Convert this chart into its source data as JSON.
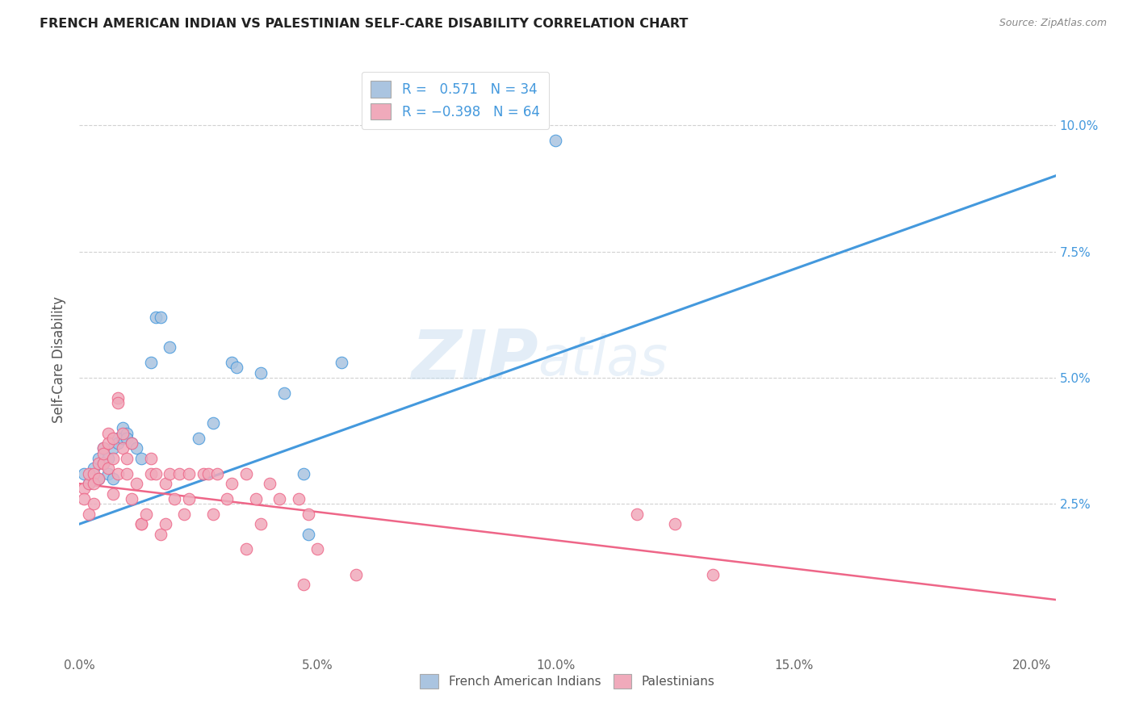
{
  "title": "FRENCH AMERICAN INDIAN VS PALESTINIAN SELF-CARE DISABILITY CORRELATION CHART",
  "source": "Source: ZipAtlas.com",
  "ylabel": "Self-Care Disability",
  "xlim": [
    0.0,
    0.205
  ],
  "ylim": [
    -0.005,
    0.112
  ],
  "watermark": "ZIPatlas",
  "legend_entries": [
    {
      "label": "French American Indians",
      "R": 0.571,
      "N": 34,
      "color": "#aac4e0"
    },
    {
      "label": "Palestinians",
      "R": -0.398,
      "N": 64,
      "color": "#f0aabb"
    }
  ],
  "blue_scatter": [
    [
      0.001,
      0.031
    ],
    [
      0.002,
      0.029
    ],
    [
      0.003,
      0.032
    ],
    [
      0.004,
      0.03
    ],
    [
      0.004,
      0.034
    ],
    [
      0.005,
      0.033
    ],
    [
      0.005,
      0.036
    ],
    [
      0.006,
      0.031
    ],
    [
      0.006,
      0.034
    ],
    [
      0.007,
      0.03
    ],
    [
      0.007,
      0.036
    ],
    [
      0.008,
      0.038
    ],
    [
      0.008,
      0.037
    ],
    [
      0.009,
      0.04
    ],
    [
      0.009,
      0.038
    ],
    [
      0.01,
      0.039
    ],
    [
      0.01,
      0.038
    ],
    [
      0.011,
      0.037
    ],
    [
      0.012,
      0.036
    ],
    [
      0.013,
      0.034
    ],
    [
      0.015,
      0.053
    ],
    [
      0.016,
      0.062
    ],
    [
      0.017,
      0.062
    ],
    [
      0.019,
      0.056
    ],
    [
      0.025,
      0.038
    ],
    [
      0.028,
      0.041
    ],
    [
      0.032,
      0.053
    ],
    [
      0.033,
      0.052
    ],
    [
      0.038,
      0.051
    ],
    [
      0.043,
      0.047
    ],
    [
      0.047,
      0.031
    ],
    [
      0.048,
      0.019
    ],
    [
      0.055,
      0.053
    ],
    [
      0.1,
      0.097
    ]
  ],
  "pink_scatter": [
    [
      0.001,
      0.028
    ],
    [
      0.001,
      0.026
    ],
    [
      0.002,
      0.029
    ],
    [
      0.002,
      0.023
    ],
    [
      0.002,
      0.031
    ],
    [
      0.003,
      0.025
    ],
    [
      0.003,
      0.031
    ],
    [
      0.003,
      0.029
    ],
    [
      0.004,
      0.033
    ],
    [
      0.004,
      0.03
    ],
    [
      0.005,
      0.036
    ],
    [
      0.005,
      0.033
    ],
    [
      0.005,
      0.035
    ],
    [
      0.006,
      0.032
    ],
    [
      0.006,
      0.039
    ],
    [
      0.006,
      0.037
    ],
    [
      0.007,
      0.038
    ],
    [
      0.007,
      0.027
    ],
    [
      0.007,
      0.034
    ],
    [
      0.008,
      0.031
    ],
    [
      0.008,
      0.046
    ],
    [
      0.008,
      0.045
    ],
    [
      0.009,
      0.039
    ],
    [
      0.009,
      0.036
    ],
    [
      0.01,
      0.034
    ],
    [
      0.01,
      0.031
    ],
    [
      0.011,
      0.037
    ],
    [
      0.011,
      0.026
    ],
    [
      0.012,
      0.029
    ],
    [
      0.013,
      0.021
    ],
    [
      0.013,
      0.021
    ],
    [
      0.014,
      0.023
    ],
    [
      0.015,
      0.034
    ],
    [
      0.015,
      0.031
    ],
    [
      0.016,
      0.031
    ],
    [
      0.017,
      0.019
    ],
    [
      0.018,
      0.029
    ],
    [
      0.018,
      0.021
    ],
    [
      0.019,
      0.031
    ],
    [
      0.02,
      0.026
    ],
    [
      0.021,
      0.031
    ],
    [
      0.022,
      0.023
    ],
    [
      0.023,
      0.031
    ],
    [
      0.023,
      0.026
    ],
    [
      0.026,
      0.031
    ],
    [
      0.027,
      0.031
    ],
    [
      0.028,
      0.023
    ],
    [
      0.029,
      0.031
    ],
    [
      0.031,
      0.026
    ],
    [
      0.032,
      0.029
    ],
    [
      0.035,
      0.016
    ],
    [
      0.035,
      0.031
    ],
    [
      0.037,
      0.026
    ],
    [
      0.038,
      0.021
    ],
    [
      0.04,
      0.029
    ],
    [
      0.042,
      0.026
    ],
    [
      0.046,
      0.026
    ],
    [
      0.05,
      0.016
    ],
    [
      0.117,
      0.023
    ],
    [
      0.125,
      0.021
    ],
    [
      0.133,
      0.011
    ],
    [
      0.047,
      0.009
    ],
    [
      0.058,
      0.011
    ],
    [
      0.048,
      0.023
    ]
  ],
  "blue_line_x": [
    0.0,
    0.205
  ],
  "blue_line_y": [
    0.021,
    0.09
  ],
  "pink_line_x": [
    0.0,
    0.205
  ],
  "pink_line_y": [
    0.029,
    0.006
  ],
  "blue_color": "#4499dd",
  "pink_color": "#ee6688",
  "blue_fill": "#aac4e0",
  "pink_fill": "#f0aabb",
  "grid_color": "#cccccc",
  "background_color": "#ffffff",
  "yticks": [
    0.025,
    0.05,
    0.075,
    0.1
  ],
  "ytick_labels": [
    "2.5%",
    "5.0%",
    "7.5%",
    "10.0%"
  ],
  "xticks": [
    0.0,
    0.05,
    0.1,
    0.15,
    0.2
  ],
  "xtick_labels": [
    "0.0%",
    "5.0%",
    "10.0%",
    "15.0%",
    "20.0%"
  ]
}
